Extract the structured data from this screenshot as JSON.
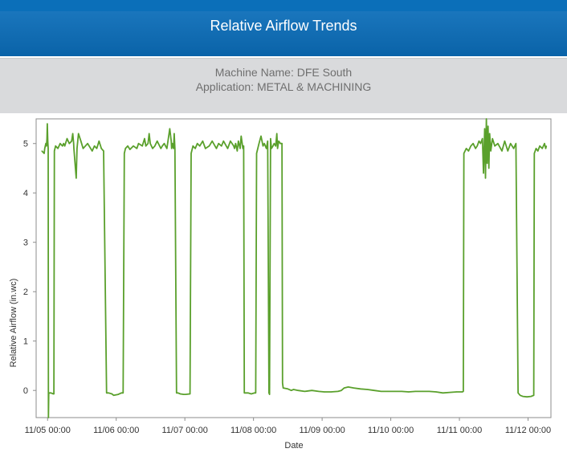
{
  "header": {
    "title": "Relative Airflow Trends"
  },
  "info": {
    "machine_line": "Machine Name: DFE South",
    "application_line": "Application: METAL & MACHINING"
  },
  "colors": {
    "header_bg": "#0a63a8",
    "subheader_bg": "#d9dadc",
    "series": "#5aa02c"
  },
  "chart_data": {
    "type": "line",
    "title": "",
    "xlabel": "Date",
    "ylabel": "Relative Airflow (in.wc)",
    "x_start": "11/04 20:00",
    "x_end": "11/12 08:00",
    "x_ticks": [
      "11/05 00:00",
      "11/06 00:00",
      "11/07 00:00",
      "11/08 00:00",
      "11/09 00:00",
      "11/10 00:00",
      "11/11 00:00",
      "11/12 00:00"
    ],
    "y_ticks": [
      0,
      1,
      2,
      3,
      4,
      5
    ],
    "ylim": [
      -0.55,
      5.5
    ],
    "grid": false,
    "legend": "none",
    "series": [
      {
        "points": [
          [
            "11/04 22:00",
            4.85
          ],
          [
            "11/04 22:48",
            4.8
          ],
          [
            "11/04 23:00",
            4.9
          ],
          [
            "11/04 23:24",
            5.0
          ],
          [
            "11/04 23:38",
            4.95
          ],
          [
            "11/04 23:48",
            5.1
          ],
          [
            "11/04 23:55",
            5.4
          ],
          [
            "11/05 00:05",
            5.05
          ],
          [
            "11/05 00:12",
            4.9
          ],
          [
            "11/05 00:18",
            -0.55
          ],
          [
            "11/05 00:24",
            -0.05
          ],
          [
            "11/05 01:12",
            -0.05
          ],
          [
            "11/05 02:00",
            -0.07
          ],
          [
            "11/05 02:13",
            -0.07
          ],
          [
            "11/05 02:22",
            4.85
          ],
          [
            "11/05 02:48",
            4.95
          ],
          [
            "11/05 03:36",
            4.9
          ],
          [
            "11/05 04:24",
            5.0
          ],
          [
            "11/05 05:12",
            4.95
          ],
          [
            "11/05 05:36",
            5.0
          ],
          [
            "11/05 06:00",
            4.95
          ],
          [
            "11/05 06:48",
            5.1
          ],
          [
            "11/05 07:36",
            5.0
          ],
          [
            "11/05 08:24",
            5.05
          ],
          [
            "11/05 08:48",
            5.2
          ],
          [
            "11/05 09:07",
            5.0
          ],
          [
            "11/05 09:12",
            4.9
          ],
          [
            "11/05 10:00",
            4.3
          ],
          [
            "11/05 10:17",
            4.9
          ],
          [
            "11/05 10:48",
            5.2
          ],
          [
            "11/05 11:38",
            5.05
          ],
          [
            "11/05 12:26",
            4.9
          ],
          [
            "11/05 13:12",
            4.95
          ],
          [
            "11/05 14:00",
            5.0
          ],
          [
            "11/05 15:36",
            4.85
          ],
          [
            "11/05 16:24",
            4.95
          ],
          [
            "11/05 17:12",
            4.9
          ],
          [
            "11/05 18:00",
            5.05
          ],
          [
            "11/05 18:48",
            4.9
          ],
          [
            "11/05 19:36",
            4.85
          ],
          [
            "11/05 20:38",
            -0.05
          ],
          [
            "11/05 21:22",
            -0.05
          ],
          [
            "11/05 22:29",
            -0.07
          ],
          [
            "11/05 23:07",
            -0.1
          ],
          [
            "11/06 00:43",
            -0.08
          ],
          [
            "11/06 01:48",
            -0.05
          ],
          [
            "11/06 02:24",
            -0.05
          ],
          [
            "11/06 02:50",
            4.8
          ],
          [
            "11/06 03:14",
            4.9
          ],
          [
            "11/06 04:02",
            4.95
          ],
          [
            "11/06 04:48",
            4.88
          ],
          [
            "11/06 06:00",
            4.95
          ],
          [
            "11/06 07:12",
            4.9
          ],
          [
            "11/06 07:48",
            5.0
          ],
          [
            "11/06 09:07",
            4.95
          ],
          [
            "11/06 09:55",
            5.1
          ],
          [
            "11/06 10:22",
            4.95
          ],
          [
            "11/06 11:07",
            5.0
          ],
          [
            "11/06 11:31",
            5.2
          ],
          [
            "11/06 11:55",
            5.0
          ],
          [
            "11/06 12:43",
            4.9
          ],
          [
            "11/06 13:31",
            4.95
          ],
          [
            "11/06 14:19",
            5.05
          ],
          [
            "11/06 15:36",
            4.9
          ],
          [
            "11/06 16:07",
            4.95
          ],
          [
            "11/06 16:48",
            5.0
          ],
          [
            "11/06 17:43",
            4.9
          ],
          [
            "11/06 18:43",
            5.3
          ],
          [
            "11/06 19:14",
            5.05
          ],
          [
            "11/06 19:22",
            4.9
          ],
          [
            "11/06 19:38",
            5.0
          ],
          [
            "11/06 20:02",
            4.9
          ],
          [
            "11/06 20:17",
            5.2
          ],
          [
            "11/06 20:31",
            4.9
          ],
          [
            "11/06 21:05",
            -0.05
          ],
          [
            "11/06 21:38",
            -0.05
          ],
          [
            "11/06 22:24",
            -0.07
          ],
          [
            "11/06 23:34",
            -0.08
          ],
          [
            "11/07 00:14",
            -0.08
          ],
          [
            "11/07 01:48",
            -0.07
          ],
          [
            "11/07 02:12",
            4.8
          ],
          [
            "11/07 02:50",
            4.95
          ],
          [
            "11/07 03:38",
            4.9
          ],
          [
            "11/07 04:22",
            5.0
          ],
          [
            "11/07 05:12",
            4.95
          ],
          [
            "11/07 06:14",
            5.05
          ],
          [
            "11/07 07:12",
            4.9
          ],
          [
            "11/07 08:31",
            4.95
          ],
          [
            "11/07 09:34",
            5.05
          ],
          [
            "11/07 11:02",
            4.9
          ],
          [
            "11/07 11:48",
            5.0
          ],
          [
            "11/07 12:48",
            4.95
          ],
          [
            "11/07 13:31",
            5.05
          ],
          [
            "11/07 14:58",
            4.9
          ],
          [
            "11/07 15:55",
            5.05
          ],
          [
            "11/07 17:05",
            4.95
          ],
          [
            "11/07 17:22",
            4.9
          ],
          [
            "11/07 17:46",
            5.0
          ],
          [
            "11/07 18:19",
            4.85
          ],
          [
            "11/07 18:43",
            5.05
          ],
          [
            "11/07 19:19",
            4.9
          ],
          [
            "11/07 19:41",
            5.15
          ],
          [
            "11/07 20:17",
            4.9
          ],
          [
            "11/07 20:34",
            4.95
          ],
          [
            "11/07 20:48",
            -0.05
          ],
          [
            "11/07 21:26",
            -0.05
          ],
          [
            "11/07 22:05",
            -0.05
          ],
          [
            "11/07 23:14",
            -0.07
          ],
          [
            "11/08 00:22",
            -0.05
          ],
          [
            "11/08 00:46",
            -0.05
          ],
          [
            "11/08 01:05",
            4.8
          ],
          [
            "11/08 01:55",
            5.0
          ],
          [
            "11/08 02:38",
            5.15
          ],
          [
            "11/08 03:19",
            4.95
          ],
          [
            "11/08 03:46",
            5.0
          ],
          [
            "11/08 04:31",
            4.9
          ],
          [
            "11/08 04:58",
            5.05
          ],
          [
            "11/08 05:24",
            -0.05
          ],
          [
            "11/08 05:36",
            -0.08
          ],
          [
            "11/08 05:58",
            5.1
          ],
          [
            "11/08 06:17",
            4.9
          ],
          [
            "11/08 06:48",
            4.95
          ],
          [
            "11/08 07:14",
            5.0
          ],
          [
            "11/08 07:46",
            4.95
          ],
          [
            "11/08 08:10",
            5.2
          ],
          [
            "11/08 08:24",
            4.9
          ],
          [
            "11/08 08:48",
            5.05
          ],
          [
            "11/08 09:24",
            5.0
          ],
          [
            "11/08 09:58",
            5.0
          ],
          [
            "11/08 10:10",
            0.15
          ],
          [
            "11/08 10:22",
            0.05
          ],
          [
            "11/08 12:00",
            0.03
          ],
          [
            "11/08 13:12",
            0.0
          ],
          [
            "11/08 14:00",
            0.02
          ],
          [
            "11/08 15:36",
            0.0
          ],
          [
            "11/08 17:53",
            -0.02
          ],
          [
            "11/08 20:24",
            0.0
          ],
          [
            "11/08 22:48",
            -0.02
          ],
          [
            "11/09 00:43",
            -0.03
          ],
          [
            "11/09 03:07",
            -0.03
          ],
          [
            "11/09 05:31",
            -0.02
          ],
          [
            "11/09 06:43",
            0.0
          ],
          [
            "11/09 07:43",
            0.05
          ],
          [
            "11/09 09:07",
            0.07
          ],
          [
            "11/09 11:02",
            0.05
          ],
          [
            "11/09 13:26",
            0.03
          ],
          [
            "11/09 15:50",
            0.02
          ],
          [
            "11/09 18:14",
            0.0
          ],
          [
            "11/09 20:38",
            -0.02
          ],
          [
            "11/09 23:02",
            -0.02
          ],
          [
            "11/10 01:26",
            -0.02
          ],
          [
            "11/10 03:50",
            -0.02
          ],
          [
            "11/10 06:14",
            -0.03
          ],
          [
            "11/10 08:38",
            -0.02
          ],
          [
            "11/10 11:02",
            -0.02
          ],
          [
            "11/10 13:26",
            -0.02
          ],
          [
            "11/10 15:50",
            -0.03
          ],
          [
            "11/10 18:14",
            -0.05
          ],
          [
            "11/10 20:38",
            -0.04
          ],
          [
            "11/10 23:02",
            -0.03
          ],
          [
            "11/11 00:58",
            -0.03
          ],
          [
            "11/11 01:22",
            -0.02
          ],
          [
            "11/11 01:34",
            4.8
          ],
          [
            "11/11 02:24",
            4.9
          ],
          [
            "11/11 03:12",
            4.85
          ],
          [
            "11/11 04:00",
            4.95
          ],
          [
            "11/11 04:48",
            5.0
          ],
          [
            "11/11 05:38",
            4.9
          ],
          [
            "11/11 06:14",
            4.95
          ],
          [
            "11/11 06:50",
            5.05
          ],
          [
            "11/11 07:26",
            5.0
          ],
          [
            "11/11 08:02",
            5.1
          ],
          [
            "11/11 08:24",
            4.4
          ],
          [
            "11/11 08:50",
            5.3
          ],
          [
            "11/11 09:07",
            4.3
          ],
          [
            "11/11 09:26",
            5.5
          ],
          [
            "11/11 09:43",
            4.6
          ],
          [
            "11/11 10:00",
            5.35
          ],
          [
            "11/11 10:17",
            4.5
          ],
          [
            "11/11 10:34",
            5.2
          ],
          [
            "11/11 10:58",
            4.85
          ],
          [
            "11/11 11:34",
            5.1
          ],
          [
            "11/11 12:22",
            4.95
          ],
          [
            "11/11 13:26",
            5.0
          ],
          [
            "11/11 14:53",
            4.85
          ],
          [
            "11/11 15:50",
            5.05
          ],
          [
            "11/11 16:55",
            4.85
          ],
          [
            "11/11 17:53",
            5.0
          ],
          [
            "11/11 18:58",
            4.9
          ],
          [
            "11/11 19:46",
            5.0
          ],
          [
            "11/11 20:31",
            -0.05
          ],
          [
            "11/11 21:14",
            -0.1
          ],
          [
            "11/11 22:10",
            -0.12
          ],
          [
            "11/11 23:38",
            -0.13
          ],
          [
            "11/12 01:02",
            -0.12
          ],
          [
            "11/12 02:00",
            -0.1
          ],
          [
            "11/12 02:12",
            4.8
          ],
          [
            "11/12 02:48",
            4.9
          ],
          [
            "11/12 03:26",
            4.85
          ],
          [
            "11/12 04:05",
            4.95
          ],
          [
            "11/12 04:58",
            4.9
          ],
          [
            "11/12 05:46",
            5.0
          ],
          [
            "11/12 06:10",
            4.9
          ],
          [
            "11/12 06:24",
            4.95
          ]
        ]
      }
    ]
  }
}
